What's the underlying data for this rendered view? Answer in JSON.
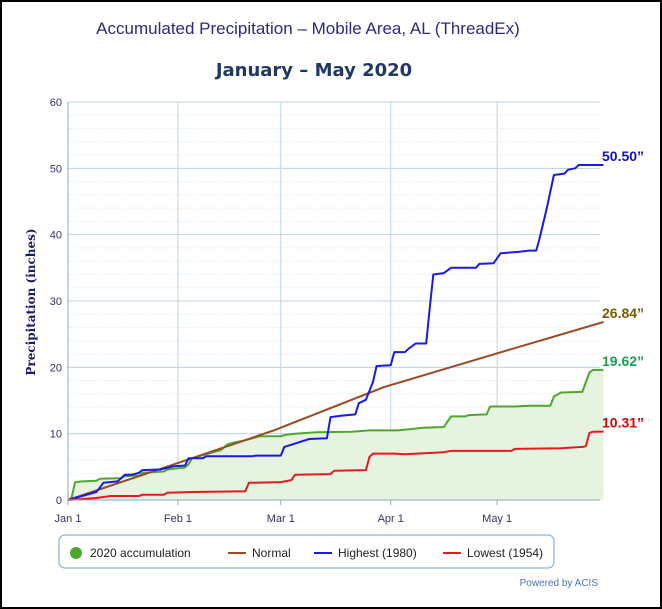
{
  "chart_data": {
    "type": "line",
    "title": "Accumulated Precipitation – Mobile Area, AL (ThreadEx)",
    "subtitle": "January – May 2020",
    "ylabel": "Precipitation (inches)",
    "xlabel": "",
    "ylim": [
      0,
      60
    ],
    "xlim_days": [
      0,
      150
    ],
    "y_ticks": [
      "0",
      "10",
      "20",
      "30",
      "40",
      "50",
      "60"
    ],
    "x_ticks": [
      {
        "label": "Jan 1",
        "day": 0
      },
      {
        "label": "Feb 1",
        "day": 31
      },
      {
        "label": "Mar 1",
        "day": 60
      },
      {
        "label": "Apr 1",
        "day": 91
      },
      {
        "label": "May 1",
        "day": 121
      }
    ],
    "grid": true,
    "legend_position": "bottom",
    "series": [
      {
        "name": "2020 accumulation",
        "color": "#4ea72e",
        "fill": "#e6f3e1",
        "marker": "dot",
        "end_label": "19.62”",
        "end_label_color": "#1a9e52",
        "points": [
          [
            0,
            0
          ],
          [
            1,
            0.3
          ],
          [
            2,
            2.7
          ],
          [
            4,
            2.8
          ],
          [
            8,
            2.9
          ],
          [
            9,
            3.2
          ],
          [
            15,
            3.3
          ],
          [
            16,
            3.6
          ],
          [
            20,
            3.7
          ],
          [
            21,
            4.1
          ],
          [
            27,
            4.3
          ],
          [
            28,
            4.6
          ],
          [
            33,
            4.9
          ],
          [
            34,
            5.4
          ],
          [
            35,
            6.3
          ],
          [
            39,
            6.9
          ],
          [
            41,
            7.2
          ],
          [
            43,
            7.5
          ],
          [
            45,
            8.4
          ],
          [
            47,
            8.7
          ],
          [
            50,
            9.0
          ],
          [
            52,
            9.3
          ],
          [
            54,
            9.6
          ],
          [
            60,
            9.6
          ],
          [
            61,
            9.8
          ],
          [
            64,
            10.0
          ],
          [
            70,
            10.2
          ],
          [
            80,
            10.3
          ],
          [
            85,
            10.5
          ],
          [
            93,
            10.5
          ],
          [
            97,
            10.7
          ],
          [
            100,
            10.9
          ],
          [
            106,
            11.0
          ],
          [
            108,
            12.6
          ],
          [
            112,
            12.6
          ],
          [
            113,
            12.8
          ],
          [
            118,
            12.9
          ],
          [
            119,
            14.1
          ],
          [
            126,
            14.1
          ],
          [
            130,
            14.2
          ],
          [
            136,
            14.2
          ],
          [
            137,
            15.6
          ],
          [
            139,
            16.2
          ],
          [
            145,
            16.3
          ],
          [
            147,
            19.2
          ],
          [
            148,
            19.6
          ],
          [
            151,
            19.62
          ]
        ]
      },
      {
        "name": "Normal",
        "color": "#9b4a25",
        "end_label": "26.84”",
        "end_label_color": "#7a5c00",
        "points": [
          [
            0,
            0
          ],
          [
            30,
            5.4
          ],
          [
            58,
            10.5
          ],
          [
            89,
            17.0
          ],
          [
            119,
            21.8
          ],
          [
            151,
            26.84
          ]
        ]
      },
      {
        "name": "Highest (1980)",
        "color": "#1a1ae6",
        "end_label": "50.50”",
        "end_label_color": "#1111cc",
        "points": [
          [
            0,
            0
          ],
          [
            4,
            0.6
          ],
          [
            6,
            0.9
          ],
          [
            8,
            1.2
          ],
          [
            10,
            2.6
          ],
          [
            14,
            2.8
          ],
          [
            16,
            3.8
          ],
          [
            18,
            3.8
          ],
          [
            20,
            4.1
          ],
          [
            21,
            4.5
          ],
          [
            26,
            4.6
          ],
          [
            30,
            5.1
          ],
          [
            33,
            5.2
          ],
          [
            34,
            6.3
          ],
          [
            38,
            6.3
          ],
          [
            39,
            6.6
          ],
          [
            52,
            6.6
          ],
          [
            53,
            6.7
          ],
          [
            60,
            6.7
          ],
          [
            61,
            8.0
          ],
          [
            64,
            8.5
          ],
          [
            68,
            9.2
          ],
          [
            73,
            9.3
          ],
          [
            74,
            12.5
          ],
          [
            77,
            12.7
          ],
          [
            81,
            12.9
          ],
          [
            82,
            14.6
          ],
          [
            84,
            15.1
          ],
          [
            86,
            17.8
          ],
          [
            87,
            20.2
          ],
          [
            91,
            20.3
          ],
          [
            92,
            22.3
          ],
          [
            95,
            22.3
          ],
          [
            96,
            22.8
          ],
          [
            98,
            23.6
          ],
          [
            101,
            23.6
          ],
          [
            102,
            29.0
          ],
          [
            103,
            34.0
          ],
          [
            106,
            34.2
          ],
          [
            108,
            35.0
          ],
          [
            115,
            35.0
          ],
          [
            116,
            35.6
          ],
          [
            120,
            35.7
          ],
          [
            122,
            37.2
          ],
          [
            127,
            37.4
          ],
          [
            130,
            37.6
          ],
          [
            132,
            37.6
          ],
          [
            133,
            39.5
          ],
          [
            135,
            44.0
          ],
          [
            137,
            49.0
          ],
          [
            140,
            49.2
          ],
          [
            141,
            49.8
          ],
          [
            143,
            50.0
          ],
          [
            144,
            50.5
          ],
          [
            151,
            50.5
          ]
        ]
      },
      {
        "name": "Lowest (1954)",
        "color": "#e6191f",
        "end_label": "10.31”",
        "end_label_color": "#dd0000",
        "points": [
          [
            0,
            0
          ],
          [
            8,
            0.3
          ],
          [
            12,
            0.6
          ],
          [
            20,
            0.6
          ],
          [
            21,
            0.8
          ],
          [
            27,
            0.8
          ],
          [
            28,
            1.1
          ],
          [
            35,
            1.2
          ],
          [
            48,
            1.3
          ],
          [
            50,
            1.3
          ],
          [
            51,
            2.6
          ],
          [
            60,
            2.7
          ],
          [
            63,
            3.0
          ],
          [
            64,
            3.8
          ],
          [
            74,
            3.9
          ],
          [
            75,
            4.4
          ],
          [
            84,
            4.5
          ],
          [
            85,
            6.5
          ],
          [
            86,
            7.0
          ],
          [
            92,
            7.0
          ],
          [
            95,
            6.9
          ],
          [
            106,
            7.2
          ],
          [
            108,
            7.4
          ],
          [
            125,
            7.4
          ],
          [
            126,
            7.7
          ],
          [
            139,
            7.8
          ],
          [
            145,
            8.0
          ],
          [
            146,
            8.1
          ],
          [
            147,
            10.1
          ],
          [
            148,
            10.3
          ],
          [
            151,
            10.31
          ]
        ]
      }
    ]
  },
  "credit": "Powered by ACIS"
}
